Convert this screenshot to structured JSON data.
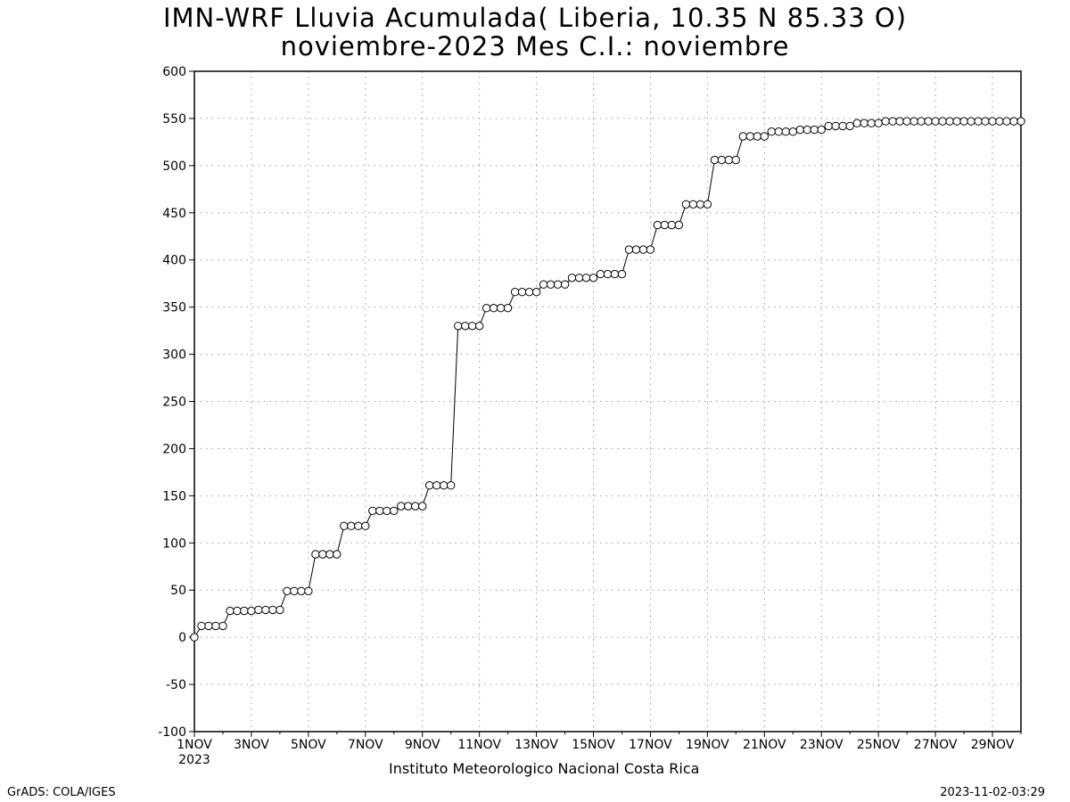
{
  "chart_data": {
    "type": "line",
    "title": "IMN-WRF  Lluvia Acumulada( Liberia, 10.35  N 85.33  O)",
    "subtitle": "noviembre-2023 Mes C.I.: noviembre",
    "xlabel": "",
    "ylabel": "",
    "xlim": [
      0,
      29
    ],
    "ylim": [
      -100,
      600
    ],
    "grid": true,
    "y_ticks": [
      -100,
      -50,
      0,
      50,
      100,
      150,
      200,
      250,
      300,
      350,
      400,
      450,
      500,
      550,
      600
    ],
    "x_ticks": [
      {
        "day": 0,
        "label": "1NOV",
        "sublabel": "2023"
      },
      {
        "day": 2,
        "label": "3NOV"
      },
      {
        "day": 4,
        "label": "5NOV"
      },
      {
        "day": 6,
        "label": "7NOV"
      },
      {
        "day": 8,
        "label": "9NOV"
      },
      {
        "day": 10,
        "label": "11NOV"
      },
      {
        "day": 12,
        "label": "13NOV"
      },
      {
        "day": 14,
        "label": "15NOV"
      },
      {
        "day": 16,
        "label": "17NOV"
      },
      {
        "day": 18,
        "label": "19NOV"
      },
      {
        "day": 20,
        "label": "21NOV"
      },
      {
        "day": 22,
        "label": "23NOV"
      },
      {
        "day": 24,
        "label": "25NOV"
      },
      {
        "day": 26,
        "label": "27NOV"
      },
      {
        "day": 28,
        "label": "29NOV"
      }
    ],
    "series": [
      {
        "values": [
          0,
          12,
          12,
          12,
          12,
          28,
          28,
          28,
          28,
          29,
          29,
          29,
          29,
          49,
          49,
          49,
          49,
          88,
          88,
          88,
          88,
          118,
          118,
          118,
          118,
          134,
          134,
          134,
          134,
          139,
          139,
          139,
          139,
          161,
          161,
          161,
          161,
          330,
          330,
          330,
          330,
          349,
          349,
          349,
          349,
          366,
          366,
          366,
          366,
          374,
          374,
          374,
          374,
          381,
          381,
          381,
          381,
          385,
          385,
          385,
          385,
          411,
          411,
          411,
          411,
          437,
          437,
          437,
          437,
          459,
          459,
          459,
          459,
          506,
          506,
          506,
          506,
          531,
          531,
          531,
          531,
          536,
          536,
          536,
          536,
          538,
          538,
          538,
          538,
          542,
          542,
          542,
          542,
          545,
          545,
          545,
          545,
          547,
          547,
          547,
          547,
          547,
          547,
          547,
          547,
          547,
          547,
          547,
          547,
          547,
          547,
          547,
          547,
          547,
          547,
          547,
          547
        ],
        "x_step_days": 0.25,
        "x_start_day": 0
      }
    ]
  },
  "footer": {
    "institute": "Instituto Meteorologico Nacional Costa Rica",
    "credit": "GrADS: COLA/IGES",
    "timestamp": "2023-11-02-03:29"
  },
  "colors": {
    "line": "#000000",
    "grid": "#9a9a9a",
    "marker_fill": "#ffffff"
  }
}
